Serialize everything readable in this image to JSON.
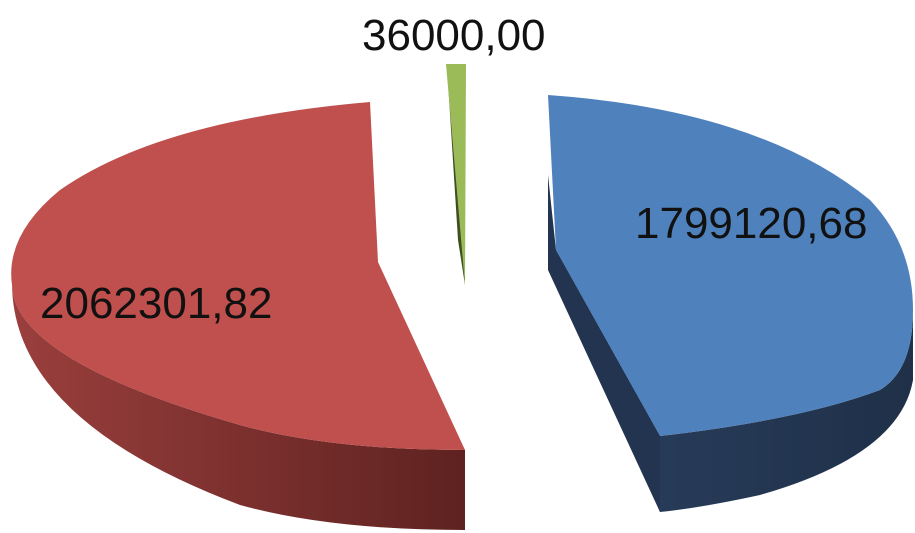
{
  "chart_data": {
    "type": "pie",
    "style": "3d-exploded",
    "slices": [
      {
        "label": "1799120,68",
        "value": 1799120.68,
        "color": "#4f81bd",
        "side_color": "#22344f"
      },
      {
        "label": "2062301,82",
        "value": 2062301.82,
        "color": "#c0504d",
        "side_color": "#6e2725"
      },
      {
        "label": "36000,00",
        "value": 36000.0,
        "color": "#9bbb59",
        "side_color": "#3e4f22"
      }
    ],
    "legend": "none",
    "title": ""
  }
}
